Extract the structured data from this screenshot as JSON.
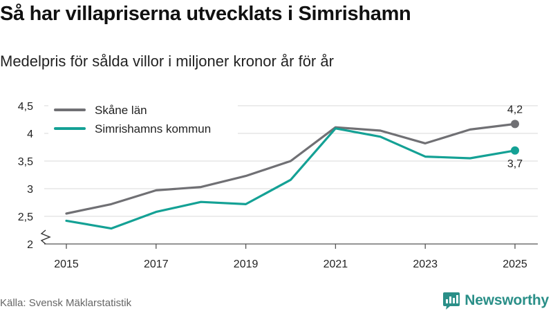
{
  "header": {
    "title": "Så har villapriserna utvecklats i Simrishamn",
    "subtitle": "Medelpris för sålda villor i miljoner kronor år för år"
  },
  "chart_data": {
    "type": "line",
    "x": [
      2015,
      2016,
      2017,
      2018,
      2019,
      2020,
      2021,
      2022,
      2023,
      2024,
      2025
    ],
    "x_tick_labels": [
      "2015",
      "2017",
      "2019",
      "2021",
      "2023",
      "2025"
    ],
    "y_tick_labels": [
      "2",
      "2,5",
      "3",
      "3,5",
      "4",
      "4,5"
    ],
    "y_ticks": [
      2,
      2.5,
      3,
      3.5,
      4,
      4.5
    ],
    "ylim": [
      2,
      4.5
    ],
    "xlim": [
      2015,
      2025
    ],
    "grid": true,
    "y_axis_break": true,
    "legend_position": "top-left",
    "series": [
      {
        "name": "Skåne län",
        "color": "#707074",
        "values": [
          2.55,
          2.72,
          2.97,
          3.03,
          3.23,
          3.5,
          4.11,
          4.05,
          3.82,
          4.07,
          4.17
        ],
        "end_label": "4,2",
        "end_label_position": "above"
      },
      {
        "name": "Simrishamns kommun",
        "color": "#14a195",
        "values": [
          2.42,
          2.28,
          2.58,
          2.76,
          2.72,
          3.16,
          4.09,
          3.94,
          3.58,
          3.55,
          3.69
        ],
        "end_label": "3,7",
        "end_label_position": "below"
      }
    ]
  },
  "footer": {
    "source": "Källa: Svensk Mäklarstatistik",
    "brand": "Newsworthy",
    "brand_color": "#2a8f88"
  }
}
